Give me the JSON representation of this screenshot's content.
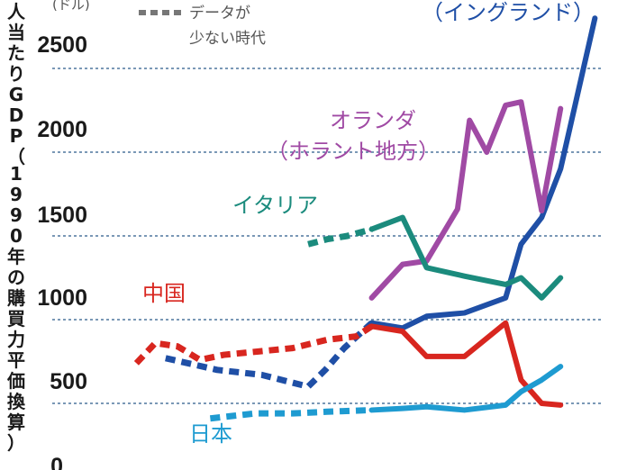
{
  "chart_data": {
    "type": "line",
    "title": "",
    "ylabel": "人当たりGDP（1990年の購買力平価換算）",
    "yunit": "(ドル)",
    "ylim": [
      0,
      2800
    ],
    "yticks": [
      0,
      500,
      1000,
      1500,
      2000,
      2500
    ],
    "grid": true,
    "xlabel": "",
    "legend": {
      "dotted_label_line1": "データが",
      "dotted_label_line2": "少ない時代",
      "placement": "top-left"
    },
    "series": [
      {
        "name": "england",
        "label_lines": [
          "（イングランド）"
        ],
        "color": "#1f4fa6",
        "dashed_points": [
          [
            6.6,
            770
          ],
          [
            9.6,
            700
          ],
          [
            12.2,
            670
          ],
          [
            14.9,
            600
          ],
          [
            15.9,
            700
          ],
          [
            17.0,
            830
          ],
          [
            18.6,
            980
          ]
        ],
        "solid_points": [
          [
            18.6,
            980
          ],
          [
            20.4,
            950
          ],
          [
            21.8,
            1020
          ],
          [
            24.0,
            1040
          ],
          [
            26.4,
            1130
          ],
          [
            27.3,
            1450
          ],
          [
            28.5,
            1610
          ],
          [
            29.6,
            1900
          ],
          [
            31.6,
            2800
          ]
        ]
      },
      {
        "name": "netherlands",
        "label_lines": [
          "オランダ",
          "（ホラント地方）"
        ],
        "color": "#a04aa4",
        "dashed_points": [],
        "solid_points": [
          [
            18.6,
            1130
          ],
          [
            20.4,
            1330
          ],
          [
            21.8,
            1350
          ],
          [
            23.6,
            1660
          ],
          [
            24.3,
            2190
          ],
          [
            25.3,
            2000
          ],
          [
            26.4,
            2280
          ],
          [
            27.3,
            2300
          ],
          [
            28.5,
            1650
          ],
          [
            29.6,
            2260
          ]
        ]
      },
      {
        "name": "italy",
        "label_lines": [
          "イタリア"
        ],
        "color": "#1b8b7d",
        "dashed_points": [
          [
            14.9,
            1450
          ],
          [
            16.0,
            1480
          ],
          [
            17.2,
            1500
          ],
          [
            18.6,
            1540
          ]
        ],
        "solid_points": [
          [
            18.6,
            1540
          ],
          [
            20.4,
            1610
          ],
          [
            21.8,
            1310
          ],
          [
            24.0,
            1260
          ],
          [
            26.4,
            1210
          ],
          [
            27.3,
            1250
          ],
          [
            28.5,
            1130
          ],
          [
            29.6,
            1250
          ]
        ]
      },
      {
        "name": "china",
        "label_lines": [
          "中国"
        ],
        "color": "#d8261f",
        "dashed_points": [
          [
            4.9,
            740
          ],
          [
            6.0,
            860
          ],
          [
            7.3,
            840
          ],
          [
            8.6,
            760
          ],
          [
            10.0,
            790
          ],
          [
            12.0,
            810
          ],
          [
            14.0,
            830
          ],
          [
            16.0,
            880
          ],
          [
            17.7,
            900
          ],
          [
            18.6,
            960
          ]
        ],
        "solid_points": [
          [
            18.6,
            960
          ],
          [
            20.4,
            930
          ],
          [
            21.8,
            780
          ],
          [
            24.0,
            780
          ],
          [
            26.4,
            980
          ],
          [
            27.3,
            640
          ],
          [
            28.5,
            500
          ],
          [
            29.6,
            490
          ]
        ]
      },
      {
        "name": "japan",
        "label_lines": [
          "日本"
        ],
        "color": "#1e9bd1",
        "dashed_points": [
          [
            9.2,
            410
          ],
          [
            11.8,
            440
          ],
          [
            14.0,
            440
          ],
          [
            16.0,
            450
          ],
          [
            18.6,
            460
          ]
        ],
        "solid_points": [
          [
            18.6,
            460
          ],
          [
            20.4,
            470
          ],
          [
            21.8,
            480
          ],
          [
            24.0,
            460
          ],
          [
            26.4,
            490
          ],
          [
            27.3,
            570
          ],
          [
            28.5,
            640
          ],
          [
            29.6,
            720
          ]
        ]
      }
    ]
  }
}
